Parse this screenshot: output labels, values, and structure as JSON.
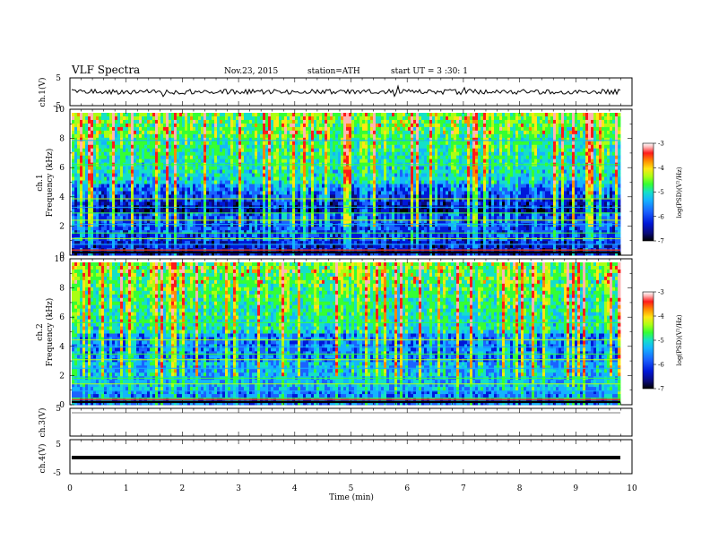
{
  "header": {
    "title": "VLF  Spectra",
    "date": "Nov.23, 2015",
    "station": "station=ATH",
    "start": "start  UT =   3  :30: 1"
  },
  "colors": {
    "colormap": [
      "#000000",
      "#0a0a7a",
      "#0018d8",
      "#1b62ff",
      "#14b4ff",
      "#14e0c8",
      "#34ff34",
      "#aaff14",
      "#ffe614",
      "#ff8c00",
      "#ff1a1a",
      "#ffb4b4",
      "#ffffff"
    ]
  },
  "chart_data": [
    {
      "type": "line",
      "name": "ch1-waveform",
      "ylabel": "ch.1(V)",
      "ylim": [
        -5,
        5
      ],
      "yticks": [
        "5",
        "-5"
      ],
      "xlim": [
        0,
        10
      ],
      "baseline": 0,
      "description_values": "noisy waveform around 0 V with amplitude about ±1 V"
    },
    {
      "type": "heatmap",
      "name": "ch1-spectrogram",
      "channel_label": "ch.1",
      "ylabel": "Frequency  (kHz)",
      "ylim": [
        0,
        10
      ],
      "yticks": [
        "0",
        "2",
        "4",
        "6",
        "8",
        "10"
      ],
      "xlim": [
        0,
        9.8
      ],
      "colorbar": {
        "label": "log(PSD)(V²/Hz)",
        "range": [
          -7,
          -3
        ],
        "ticks": [
          "-3",
          "-4",
          "-5",
          "-6",
          "-7"
        ]
      }
    },
    {
      "type": "heatmap",
      "name": "ch2-spectrogram",
      "channel_label": "ch.2",
      "ylabel": "Frequency  (kHz)",
      "ylim": [
        0,
        10
      ],
      "yticks": [
        "0",
        "2",
        "4",
        "6",
        "8",
        "10"
      ],
      "xlim": [
        0,
        9.8
      ],
      "colorbar": {
        "label": "log(PSD)(V²/Hz)",
        "range": [
          -7,
          -3
        ],
        "ticks": [
          "-3",
          "-4",
          "-5",
          "-6",
          "-7"
        ]
      }
    },
    {
      "type": "line",
      "name": "ch3-waveform",
      "ylabel": "ch.3(V)",
      "ylim": [
        -5,
        5
      ],
      "yticks": [
        "5"
      ],
      "xlim": [
        0,
        10
      ],
      "baseline": 5
    },
    {
      "type": "line",
      "name": "ch4-waveform",
      "ylabel": "ch.4(V)",
      "ylim": [
        -5,
        5
      ],
      "yticks": [
        "5",
        "-5"
      ],
      "xlim": [
        0,
        10
      ],
      "baseline": 0
    }
  ],
  "xaxis": {
    "label": "Time  (min)",
    "ticks": [
      "0",
      "1",
      "2",
      "3",
      "4",
      "5",
      "6",
      "7",
      "8",
      "9",
      "10"
    ]
  }
}
